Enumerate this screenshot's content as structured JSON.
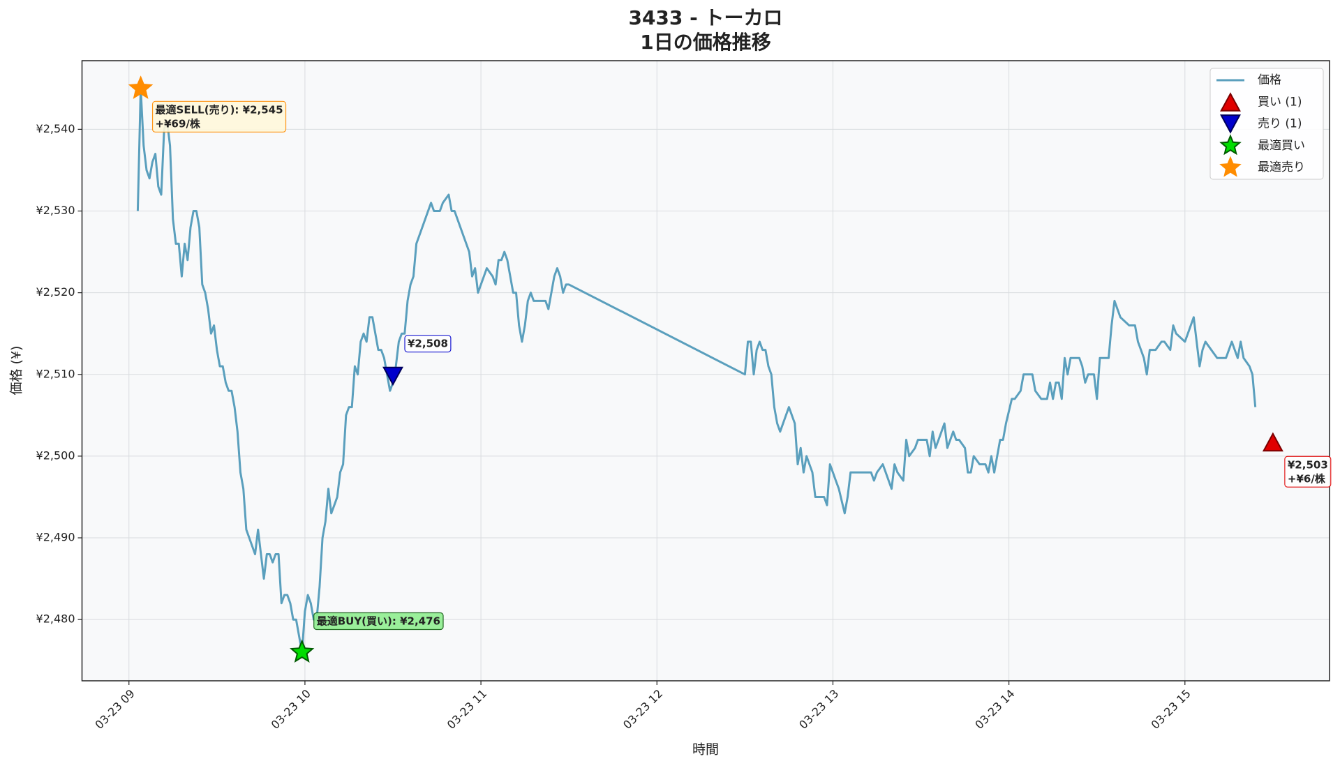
{
  "chart_data": {
    "type": "line",
    "title": "3433 - トーカロ",
    "subtitle": "1日の価格推移",
    "x_label": "時間",
    "y_label": "価格 (¥)",
    "xlim": [
      524,
      949.3
    ],
    "ylim": [
      2472.5,
      2548.4
    ],
    "xticks": [
      {
        "value": 540,
        "label": "03-23 09"
      },
      {
        "value": 600,
        "label": "03-23 10"
      },
      {
        "value": 660,
        "label": "03-23 11"
      },
      {
        "value": 720,
        "label": "03-23 12"
      },
      {
        "value": 780,
        "label": "03-23 13"
      },
      {
        "value": 840,
        "label": "03-23 14"
      },
      {
        "value": 900,
        "label": "03-23 15"
      }
    ],
    "yticks": [
      {
        "value": 2480,
        "label": "¥2,480"
      },
      {
        "value": 2490,
        "label": "¥2,490"
      },
      {
        "value": 2500,
        "label": "¥2,500"
      },
      {
        "value": 2510,
        "label": "¥2,510"
      },
      {
        "value": 2520,
        "label": "¥2,520"
      },
      {
        "value": 2530,
        "label": "¥2,530"
      },
      {
        "value": 2540,
        "label": "¥2,540"
      }
    ],
    "grid": true,
    "legend": "upper right",
    "series": [
      {
        "name": "価格",
        "marker": "line",
        "color": "#5a9fbd",
        "x": [
          543,
          544,
          545,
          546,
          547,
          548,
          549,
          550,
          551,
          552,
          553,
          554,
          555,
          556,
          557,
          558,
          559,
          560,
          561,
          562,
          563,
          564,
          565,
          566,
          567,
          568,
          569,
          570,
          571,
          572,
          573,
          574,
          575,
          576,
          577,
          578,
          579,
          580,
          581,
          582,
          583,
          584,
          585,
          586,
          587,
          588,
          589,
          590,
          591,
          592,
          593,
          594,
          595,
          596,
          597,
          599,
          600,
          601,
          602,
          603,
          604,
          605,
          606,
          607,
          608,
          609,
          610,
          611,
          612,
          613,
          614,
          615,
          616,
          617,
          618,
          619,
          620,
          621,
          622,
          623,
          624,
          625,
          626,
          627,
          628,
          629,
          630,
          631,
          632,
          633,
          634,
          635,
          636,
          637,
          638,
          639,
          641,
          643,
          644,
          646,
          647,
          649,
          650,
          651,
          652,
          654,
          655,
          656,
          657,
          658,
          659,
          660,
          661,
          662,
          664,
          665,
          666,
          667,
          668,
          669,
          670,
          671,
          672,
          673,
          674,
          675,
          676,
          677,
          678,
          680,
          682,
          683,
          684,
          685,
          686,
          687,
          688,
          689,
          690,
          750,
          751,
          752,
          753,
          754,
          755,
          756,
          757,
          758,
          759,
          760,
          761,
          762,
          763,
          764,
          765,
          767,
          768,
          769,
          770,
          771,
          772,
          773,
          774,
          775,
          777,
          778,
          779,
          780,
          781,
          782,
          784,
          785,
          786,
          788,
          790,
          793,
          794,
          795,
          797,
          799,
          800,
          801,
          802,
          804,
          805,
          806,
          808,
          809,
          811,
          812,
          813,
          814,
          815,
          816,
          818,
          819,
          821,
          822,
          823,
          825,
          826,
          827,
          828,
          830,
          832,
          833,
          834,
          835,
          837,
          838,
          839,
          841,
          842,
          844,
          845,
          848,
          849,
          851,
          853,
          854,
          855,
          856,
          857,
          858,
          859,
          860,
          861,
          864,
          865,
          866,
          867,
          869,
          870,
          871,
          874,
          875,
          876,
          878,
          881,
          883,
          884,
          885,
          886,
          887,
          888,
          890,
          892,
          893,
          895,
          896,
          897,
          900,
          901,
          903,
          904,
          905,
          906,
          907,
          909,
          911,
          914,
          916,
          917,
          918,
          919,
          920,
          922,
          923,
          924
        ],
        "values": [
          2530,
          2545,
          2538,
          2535,
          2534,
          2536,
          2537,
          2533,
          2532,
          2540,
          2541,
          2538,
          2529,
          2526,
          2526,
          2522,
          2526,
          2524,
          2528,
          2530,
          2530,
          2528,
          2521,
          2520,
          2518,
          2515,
          2516,
          2513,
          2511,
          2511,
          2509,
          2508,
          2508,
          2506,
          2503,
          2498,
          2496,
          2491,
          2490,
          2489,
          2488,
          2491,
          2488,
          2485,
          2488,
          2488,
          2487,
          2488,
          2488,
          2482,
          2483,
          2483,
          2482,
          2480,
          2480,
          2476,
          2481,
          2483,
          2482,
          2480,
          2480,
          2484,
          2490,
          2492,
          2496,
          2493,
          2494,
          2495,
          2498,
          2499,
          2505,
          2506,
          2506,
          2511,
          2510,
          2514,
          2515,
          2514,
          2517,
          2517,
          2515,
          2513,
          2513,
          2512,
          2510,
          2508,
          2509,
          2511,
          2514,
          2515,
          2515,
          2519,
          2521,
          2522,
          2526,
          2527,
          2529,
          2531,
          2530,
          2530,
          2531,
          2532,
          2530,
          2530,
          2529,
          2527,
          2526,
          2525,
          2522,
          2523,
          2520,
          2521,
          2522,
          2523,
          2522,
          2521,
          2524,
          2524,
          2525,
          2524,
          2522,
          2520,
          2520,
          2516,
          2514,
          2516,
          2519,
          2520,
          2519,
          2519,
          2519,
          2518,
          2520,
          2522,
          2523,
          2522,
          2520,
          2521,
          2521,
          2510,
          2514,
          2514,
          2510,
          2513,
          2514,
          2513,
          2513,
          2511,
          2510,
          2506,
          2504,
          2503,
          2504,
          2505,
          2506,
          2504,
          2499,
          2501,
          2498,
          2500,
          2499,
          2498,
          2495,
          2495,
          2495,
          2494,
          2499,
          2498,
          2497,
          2496,
          2493,
          2495,
          2498,
          2498,
          2498,
          2498,
          2497,
          2498,
          2499,
          2497,
          2496,
          2499,
          2498,
          2497,
          2502,
          2500,
          2501,
          2502,
          2502,
          2502,
          2500,
          2503,
          2501,
          2502,
          2504,
          2501,
          2503,
          2502,
          2502,
          2501,
          2498,
          2498,
          2500,
          2499,
          2499,
          2498,
          2500,
          2498,
          2502,
          2502,
          2504,
          2507,
          2507,
          2508,
          2510,
          2510,
          2508,
          2507,
          2507,
          2509,
          2507,
          2509,
          2509,
          2507,
          2512,
          2510,
          2512,
          2512,
          2511,
          2509,
          2510,
          2510,
          2507,
          2512,
          2512,
          2516,
          2519,
          2517,
          2516,
          2516,
          2514,
          2513,
          2512,
          2510,
          2513,
          2513,
          2514,
          2514,
          2513,
          2516,
          2515,
          2514,
          2515,
          2517,
          2514,
          2511,
          2513,
          2514,
          2513,
          2512,
          2512,
          2514,
          2513,
          2512,
          2514,
          2512,
          2511,
          2510,
          2506
        ]
      },
      {
        "name": "買い (1)",
        "marker": "triangle-up",
        "color": "#e00000",
        "edge": "#7a0000",
        "x": [
          930
        ],
        "values": [
          2503
        ],
        "value_labels": [
          "¥2,503"
        ],
        "sub_labels": [
          "+¥6/株"
        ],
        "label_side": "below",
        "label_color": "#e00000",
        "label_fill": "#ffffff"
      },
      {
        "name": "売り (1)",
        "marker": "triangle-down",
        "color": "#0000cc",
        "edge": "#00005a",
        "x": [
          630
        ],
        "values": [
          2508
        ],
        "value_labels": [
          "¥2,508"
        ],
        "label_side": "above",
        "label_color": "#0000cc",
        "label_fill": "#ffffff"
      },
      {
        "name": "最適買い",
        "marker": "star",
        "color": "#00dd00",
        "edge": "#005a00",
        "x": [
          599
        ],
        "values": [
          2476
        ],
        "value_labels": [
          "最適BUY(買い): ¥2,476"
        ],
        "label_side": "above",
        "label_color": "#0b5a0b",
        "label_fill": "#90ee90"
      },
      {
        "name": "最適売り",
        "marker": "star",
        "color": "#ff8c00",
        "edge": "#ff8c00",
        "x": [
          544
        ],
        "values": [
          2545
        ],
        "value_labels": [
          "最適SELL(売り): ¥2,545"
        ],
        "sub_labels": [
          "+¥69/株"
        ],
        "label_side": "below",
        "label_color": "#ff8c00",
        "label_fill": "#fff8dc"
      }
    ]
  }
}
